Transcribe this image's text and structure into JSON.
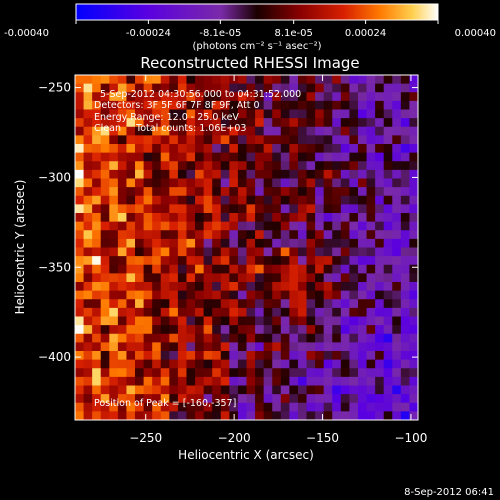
{
  "colorbar": {
    "ticks": [
      "-0.00040",
      "-0.00024",
      "-8.1e-05",
      "8.1e-05",
      "0.00024",
      "0.00040"
    ],
    "tick_values": [
      -0.0004,
      -0.00024,
      -8.1e-05,
      8.1e-05,
      0.00024,
      0.0004
    ],
    "range": [
      -0.0004,
      0.0004
    ],
    "unit_label": "(photons cm⁻² s⁻¹ asec⁻²)",
    "colors": [
      "#0000ff",
      "#5a00e0",
      "#7a2aa8",
      "#1a0000",
      "#8a0000",
      "#d82000",
      "#ff7a00",
      "#ffd050",
      "#ffffff"
    ]
  },
  "title": "Reconstructed RHESSI Image",
  "annotations": {
    "time_range": "5-Sep-2012 04:30:56.000 to 04:31:52.000",
    "detectors": "Detectors: 3F 5F 6F 7F 8F 9F, Att 0",
    "energy": "Energy Range: 12.0 - 25.0 keV",
    "clean": "Clean     Total counts: 1.06E+03",
    "peak": "Position of Peak = [-160,-357]"
  },
  "footer": {
    "timestamp": "8-Sep-2012 06:41"
  },
  "chart_data": {
    "type": "heatmap",
    "title": "Reconstructed RHESSI Image",
    "xlabel": "Heliocentric X (arcsec)",
    "ylabel": "Heliocentric Y (arcsec)",
    "xlim": [
      -290,
      -96
    ],
    "ylim": [
      -435,
      -243
    ],
    "xticks": [
      -250,
      -200,
      -150,
      -100
    ],
    "yticks": [
      -250,
      -300,
      -350,
      -400
    ],
    "xtick_labels": [
      "−250",
      "−200",
      "−150",
      "−100"
    ],
    "ytick_labels": [
      "−250",
      "−300",
      "−350",
      "−400"
    ],
    "peak_position": [
      -160,
      -357
    ],
    "value_range": [
      -0.0004,
      0.0004
    ]
  }
}
